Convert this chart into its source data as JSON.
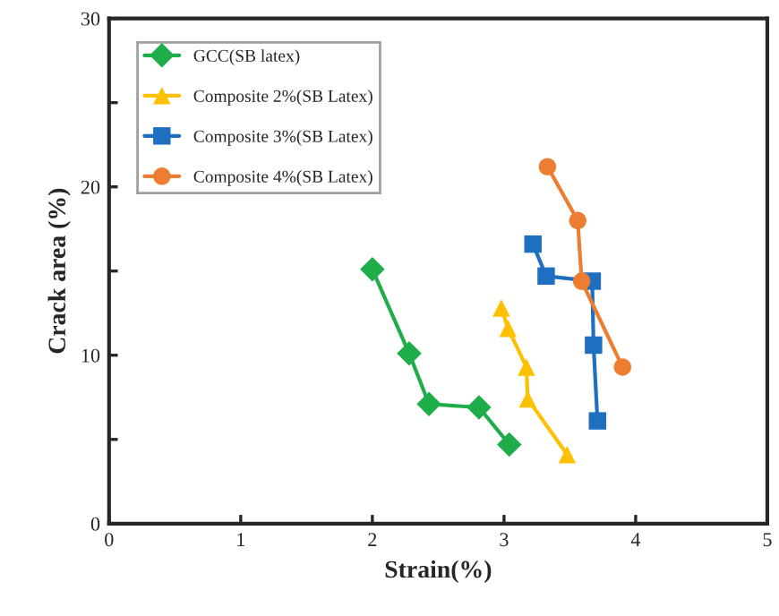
{
  "chart_data": {
    "type": "line",
    "xlabel": "Strain(%)",
    "ylabel": "Crack area (%)",
    "xlim": [
      0,
      5
    ],
    "xticks": [
      0,
      1,
      2,
      3,
      4,
      5
    ],
    "ylim": [
      0,
      30
    ],
    "yticks": [
      0,
      {
        "value": 5,
        "label": null
      },
      10,
      {
        "value": 15,
        "label": null
      },
      20,
      {
        "value": 25,
        "label": null
      },
      30
    ],
    "legend": "top left",
    "grid": false,
    "series": [
      {
        "name": "GCC(SB latex)",
        "color": "#1fad4a",
        "marker": "diamond",
        "x": [
          2.0,
          2.28,
          2.43,
          2.81,
          3.04
        ],
        "values": [
          15.1,
          10.1,
          7.1,
          6.9,
          4.7
        ]
      },
      {
        "name": "Composite 2%(SB Latex)",
        "color": "#ffc000",
        "marker": "triangle",
        "x": [
          2.98,
          3.03,
          3.17,
          3.18,
          3.48
        ],
        "values": [
          12.8,
          11.6,
          9.3,
          7.4,
          4.1
        ]
      },
      {
        "name": "Composite 3%(SB Latex)",
        "color": "#1f6fc0",
        "marker": "square",
        "x": [
          3.22,
          3.32,
          3.67,
          3.68,
          3.71
        ],
        "values": [
          16.6,
          14.7,
          14.4,
          10.6,
          6.1
        ]
      },
      {
        "name": "Composite 4%(SB Latex)",
        "color": "#ed7d31",
        "marker": "circle",
        "x": [
          3.33,
          3.56,
          3.59,
          3.9
        ],
        "values": [
          21.2,
          18.0,
          14.4,
          9.3
        ]
      }
    ]
  }
}
